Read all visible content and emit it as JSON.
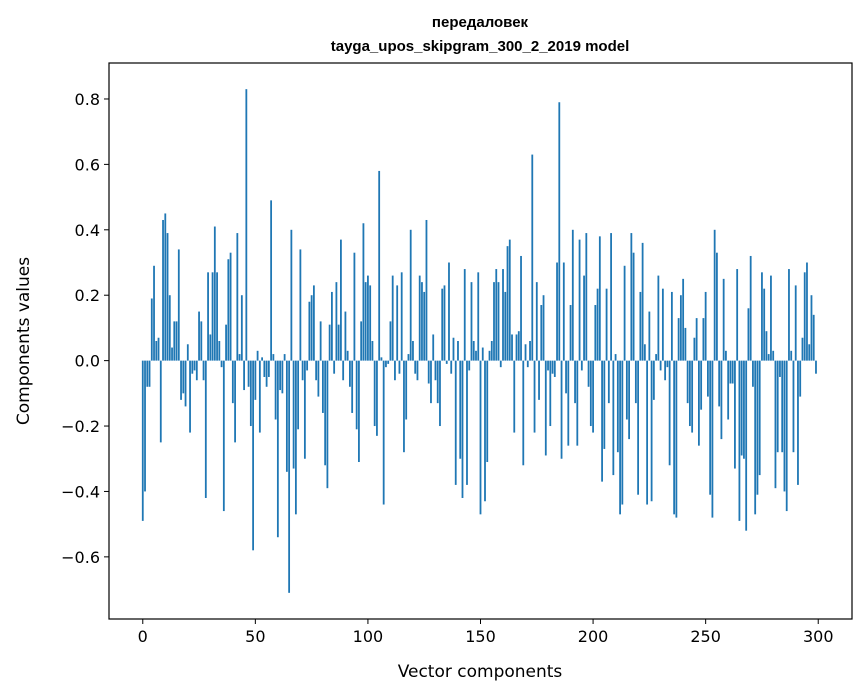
{
  "chart_data": {
    "type": "bar",
    "title": "передаловек",
    "subtitle": "tayga_upos_skipgram_300_2_2019 model",
    "xlabel": "Vector components",
    "ylabel": "Components values",
    "xlim": [
      -15,
      315
    ],
    "ylim": [
      -0.79,
      0.91
    ],
    "x_ticks": [
      0,
      50,
      100,
      150,
      200,
      250,
      300
    ],
    "y_ticks": [
      -0.6,
      -0.4,
      -0.2,
      0.0,
      0.2,
      0.4,
      0.6,
      0.8
    ],
    "x_tick_labels": [
      "0",
      "50",
      "100",
      "150",
      "200",
      "250",
      "300"
    ],
    "y_tick_labels": [
      "−0.6",
      "−0.4",
      "−0.2",
      "0.0",
      "0.2",
      "0.4",
      "0.6",
      "0.8"
    ],
    "grid": false,
    "bar_color": "#1f77b4",
    "values": [
      -0.49,
      -0.4,
      -0.08,
      -0.08,
      0.19,
      0.29,
      0.06,
      0.07,
      -0.25,
      0.43,
      0.45,
      0.39,
      0.2,
      0.04,
      0.12,
      0.12,
      0.34,
      -0.12,
      -0.1,
      -0.14,
      0.05,
      -0.22,
      -0.04,
      -0.03,
      -0.06,
      0.15,
      0.12,
      -0.06,
      -0.42,
      0.27,
      0.08,
      0.27,
      0.41,
      0.27,
      0.06,
      -0.02,
      -0.46,
      0.11,
      0.31,
      0.33,
      -0.13,
      -0.25,
      0.39,
      0.02,
      0.2,
      -0.09,
      0.83,
      -0.08,
      -0.2,
      -0.58,
      -0.12,
      0.03,
      -0.22,
      0.01,
      -0.05,
      -0.08,
      -0.05,
      0.49,
      0.02,
      -0.18,
      -0.54,
      -0.09,
      -0.1,
      0.02,
      -0.34,
      -0.71,
      0.4,
      -0.33,
      -0.47,
      -0.21,
      0.34,
      -0.06,
      -0.3,
      -0.03,
      0.18,
      0.2,
      0.23,
      -0.06,
      -0.11,
      0.12,
      -0.16,
      -0.32,
      -0.39,
      0.11,
      0.21,
      -0.04,
      0.24,
      0.11,
      0.37,
      -0.06,
      0.15,
      0.03,
      -0.08,
      -0.16,
      0.33,
      -0.21,
      -0.31,
      0.12,
      0.42,
      0.24,
      0.26,
      0.23,
      0.06,
      -0.2,
      -0.23,
      0.58,
      0.01,
      -0.44,
      -0.02,
      -0.01,
      0.12,
      0.26,
      -0.06,
      0.23,
      -0.04,
      0.27,
      -0.28,
      -0.18,
      0.02,
      0.4,
      0.06,
      -0.04,
      -0.06,
      0.26,
      0.24,
      0.21,
      0.43,
      -0.07,
      -0.13,
      0.08,
      -0.06,
      -0.13,
      -0.2,
      0.22,
      0.23,
      -0.01,
      0.3,
      -0.04,
      0.07,
      -0.38,
      0.06,
      -0.3,
      -0.42,
      0.28,
      -0.38,
      -0.03,
      0.24,
      0.06,
      0.03,
      0.27,
      -0.47,
      0.04,
      -0.43,
      -0.31,
      0.03,
      0.06,
      0.24,
      0.28,
      0.24,
      -0.02,
      0.28,
      0.21,
      0.35,
      0.37,
      0.08,
      -0.22,
      0.08,
      0.09,
      0.32,
      -0.32,
      0.05,
      -0.02,
      0.06,
      0.63,
      -0.22,
      0.24,
      -0.12,
      0.17,
      0.2,
      -0.29,
      -0.03,
      -0.2,
      -0.04,
      -0.05,
      0.3,
      0.79,
      -0.3,
      0.3,
      -0.1,
      -0.26,
      0.17,
      0.4,
      -0.13,
      -0.26,
      0.37,
      -0.03,
      0.26,
      0.39,
      -0.08,
      -0.2,
      -0.22,
      0.17,
      0.22,
      0.38,
      -0.37,
      -0.27,
      0.22,
      -0.13,
      0.39,
      -0.35,
      0.02,
      -0.28,
      -0.47,
      -0.44,
      0.29,
      -0.18,
      -0.24,
      0.39,
      0.33,
      -0.13,
      -0.41,
      0.21,
      0.36,
      0.05,
      -0.44,
      0.15,
      -0.43,
      -0.12,
      0.02,
      0.26,
      -0.03,
      0.22,
      -0.06,
      -0.02,
      -0.32,
      0.21,
      -0.47,
      -0.48,
      0.13,
      0.2,
      0.25,
      0.1,
      -0.13,
      -0.2,
      -0.22,
      0.07,
      0.13,
      -0.26,
      -0.15,
      0.13,
      0.21,
      -0.11,
      -0.41,
      -0.48,
      0.4,
      0.33,
      -0.14,
      -0.24,
      0.25,
      0.03,
      -0.18,
      -0.07,
      -0.07,
      -0.33,
      0.28,
      -0.49,
      -0.29,
      -0.3,
      -0.52,
      0.16,
      0.32,
      -0.08,
      -0.47,
      -0.41,
      -0.35,
      0.27,
      0.22,
      0.09,
      0.02,
      0.26,
      0.03,
      -0.39,
      -0.28,
      -0.05,
      -0.28,
      -0.4,
      -0.46,
      0.28,
      0.03,
      -0.28,
      0.23,
      -0.38,
      -0.11,
      0.07,
      0.27,
      0.3,
      0.05,
      0.2,
      0.14,
      -0.04
    ]
  }
}
